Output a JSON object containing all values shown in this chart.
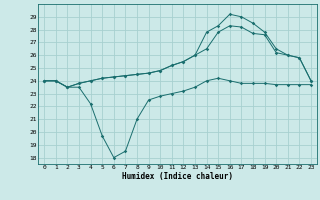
{
  "xlabel": "Humidex (Indice chaleur)",
  "bg_color": "#cce9e8",
  "grid_color": "#a8d0d0",
  "line_color": "#1a6e6e",
  "xlim": [
    -0.5,
    23.5
  ],
  "ylim": [
    17.5,
    30.0
  ],
  "xticks": [
    0,
    1,
    2,
    3,
    4,
    5,
    6,
    7,
    8,
    9,
    10,
    11,
    12,
    13,
    14,
    15,
    16,
    17,
    18,
    19,
    20,
    21,
    22,
    23
  ],
  "yticks": [
    18,
    19,
    20,
    21,
    22,
    23,
    24,
    25,
    26,
    27,
    28,
    29
  ],
  "line1_x": [
    0,
    1,
    2,
    3,
    4,
    5,
    6,
    7,
    8,
    9,
    10,
    11,
    12,
    13,
    14,
    15,
    16,
    17,
    18,
    19,
    20,
    21,
    22,
    23
  ],
  "line1_y": [
    24.0,
    24.0,
    23.5,
    23.5,
    22.2,
    19.7,
    18.0,
    18.5,
    21.0,
    22.5,
    22.8,
    23.0,
    23.2,
    23.5,
    24.0,
    24.2,
    24.0,
    23.8,
    23.8,
    23.8,
    23.7,
    23.7,
    23.7,
    23.7
  ],
  "line2_x": [
    0,
    1,
    2,
    3,
    4,
    5,
    6,
    7,
    8,
    9,
    10,
    11,
    12,
    13,
    14,
    15,
    16,
    17,
    18,
    19,
    20,
    21,
    22,
    23
  ],
  "line2_y": [
    24.0,
    24.0,
    23.5,
    23.8,
    24.0,
    24.2,
    24.3,
    24.4,
    24.5,
    24.6,
    24.8,
    25.2,
    25.5,
    26.0,
    26.5,
    27.8,
    28.3,
    28.2,
    27.7,
    27.6,
    26.2,
    26.0,
    25.8,
    24.0
  ],
  "line3_x": [
    0,
    1,
    2,
    3,
    4,
    5,
    6,
    7,
    8,
    9,
    10,
    11,
    12,
    13,
    14,
    15,
    16,
    17,
    18,
    19,
    20,
    21,
    22,
    23
  ],
  "line3_y": [
    24.0,
    24.0,
    23.5,
    23.8,
    24.0,
    24.2,
    24.3,
    24.4,
    24.5,
    24.6,
    24.8,
    25.2,
    25.5,
    26.0,
    27.8,
    28.3,
    29.2,
    29.0,
    28.5,
    27.8,
    26.5,
    26.0,
    25.8,
    24.0
  ]
}
